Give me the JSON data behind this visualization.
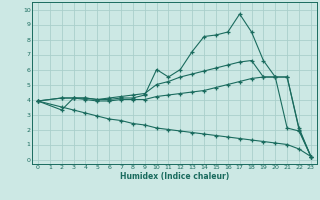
{
  "xlabel": "Humidex (Indice chaleur)",
  "bg_color": "#cce8e4",
  "grid_color": "#aacfcb",
  "line_color": "#1a6b5e",
  "xlim": [
    -0.5,
    23.5
  ],
  "ylim": [
    -0.3,
    10.5
  ],
  "xticks": [
    0,
    1,
    2,
    3,
    4,
    5,
    6,
    7,
    8,
    9,
    10,
    11,
    12,
    13,
    14,
    15,
    16,
    17,
    18,
    19,
    20,
    21,
    22,
    23
  ],
  "yticks": [
    0,
    1,
    2,
    3,
    4,
    5,
    6,
    7,
    8,
    9,
    10
  ],
  "line1_x": [
    0,
    2,
    3,
    4,
    5,
    6,
    7,
    8,
    9,
    10,
    11,
    12,
    13,
    14,
    15,
    16,
    17,
    18,
    19,
    20,
    21,
    22,
    23
  ],
  "line1_y": [
    3.9,
    3.3,
    4.1,
    4.1,
    4.0,
    4.0,
    4.1,
    4.1,
    4.3,
    6.0,
    5.5,
    6.0,
    7.2,
    8.2,
    8.3,
    8.5,
    9.7,
    8.5,
    6.6,
    5.5,
    2.1,
    1.9,
    0.2
  ],
  "line2_x": [
    0,
    2,
    3,
    4,
    5,
    6,
    7,
    8,
    9,
    10,
    11,
    12,
    13,
    14,
    15,
    16,
    17,
    18,
    19,
    20,
    21,
    22,
    23
  ],
  "line2_y": [
    3.9,
    4.1,
    4.1,
    4.1,
    4.0,
    4.1,
    4.2,
    4.3,
    4.4,
    5.0,
    5.2,
    5.5,
    5.7,
    5.9,
    6.1,
    6.3,
    6.5,
    6.6,
    5.5,
    5.5,
    5.5,
    2.1,
    0.2
  ],
  "line3_x": [
    0,
    2,
    3,
    4,
    5,
    6,
    7,
    8,
    9,
    10,
    11,
    12,
    13,
    14,
    15,
    16,
    17,
    18,
    19,
    20,
    21,
    22,
    23
  ],
  "line3_y": [
    3.9,
    4.1,
    4.1,
    4.0,
    3.9,
    3.9,
    4.0,
    4.0,
    4.0,
    4.2,
    4.3,
    4.4,
    4.5,
    4.6,
    4.8,
    5.0,
    5.2,
    5.4,
    5.5,
    5.5,
    5.5,
    2.0,
    0.2
  ],
  "line4_x": [
    0,
    2,
    3,
    4,
    5,
    6,
    7,
    8,
    9,
    10,
    11,
    12,
    13,
    14,
    15,
    16,
    17,
    18,
    19,
    20,
    21,
    22,
    23
  ],
  "line4_y": [
    3.9,
    3.5,
    3.3,
    3.1,
    2.9,
    2.7,
    2.6,
    2.4,
    2.3,
    2.1,
    2.0,
    1.9,
    1.8,
    1.7,
    1.6,
    1.5,
    1.4,
    1.3,
    1.2,
    1.1,
    1.0,
    0.7,
    0.2
  ]
}
